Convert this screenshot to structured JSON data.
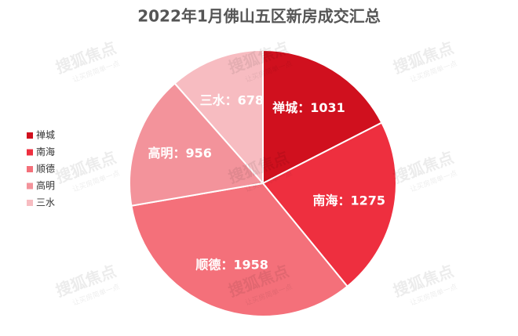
{
  "chart_data": {
    "type": "pie",
    "title": "2022年1月佛山五区新房成交汇总",
    "categories": [
      "禅城",
      "南海",
      "顺德",
      "高明",
      "三水"
    ],
    "values": [
      1031,
      1275,
      1958,
      956,
      678
    ],
    "value_labels": [
      "禅城：1031",
      "南海：1275",
      "顺德：1958",
      "高明：956",
      "三水：678"
    ],
    "colors": [
      "#d0101e",
      "#ee2f3f",
      "#f4707a",
      "#f3939b",
      "#f7bcc1"
    ],
    "legend": "left"
  },
  "watermark": {
    "brand": "搜狐焦点",
    "slogan": "让买房简单一点"
  }
}
